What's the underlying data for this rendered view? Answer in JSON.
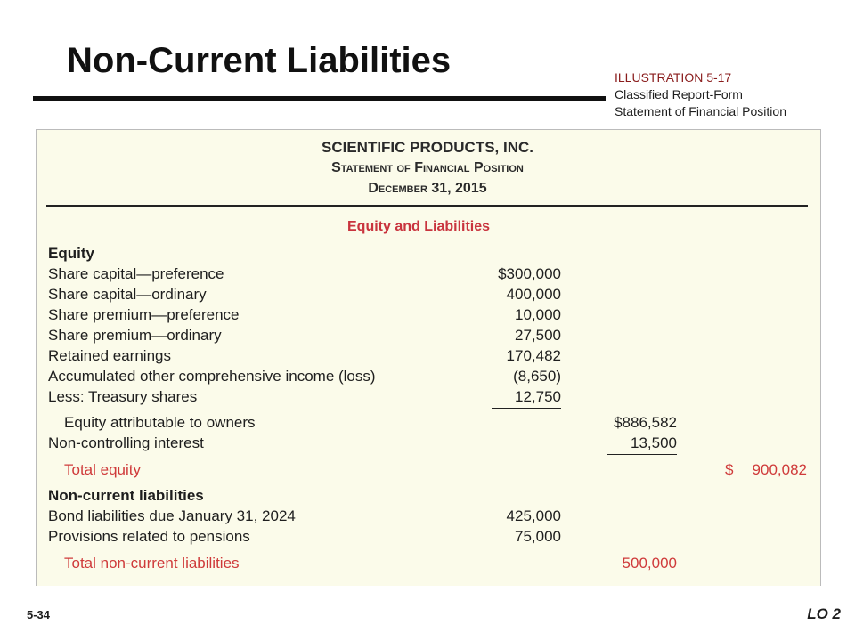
{
  "slide": {
    "title": "Non-Current Liabilities",
    "illustration": {
      "number": "ILLUSTRATION 5-17",
      "caption_lines": [
        "Classified Report-Form",
        "Statement of Financial Position"
      ]
    },
    "page_number": "5-34",
    "learning_objective": "LO 2"
  },
  "statement": {
    "company": "SCIENTIFIC PRODUCTS, INC.",
    "name": "Statement of Financial Position",
    "date": "December 31, 2015",
    "section": "Equity and Liabilities",
    "rows": [
      {
        "label": "Equity"
      },
      {
        "label": "Share capital—preference",
        "col1": "$300,000"
      },
      {
        "label": "Share capital—ordinary",
        "col1": "400,000"
      },
      {
        "label": "Share premium—preference",
        "col1": "10,000"
      },
      {
        "label": "Share premium—ordinary",
        "col1": "27,500"
      },
      {
        "label": "Retained earnings",
        "col1": "170,482"
      },
      {
        "label": "Accumulated other comprehensive income (loss)",
        "col1": "(8,650)"
      },
      {
        "label": "Less: Treasury shares",
        "col1": "12,750"
      },
      {
        "label": "Equity attributable to owners",
        "col2": "$886,582"
      },
      {
        "label": "Non-controlling interest",
        "col2": "13,500"
      },
      {
        "label": "Total equity",
        "col3": {
          "currency": "$",
          "amount": "900,082"
        }
      },
      {
        "label": "Non-current liabilities"
      },
      {
        "label": "Bond liabilities due January 31, 2024",
        "col1": "425,000"
      },
      {
        "label": "Provisions related to pensions",
        "col1": "75,000"
      },
      {
        "label": "Total non-current liabilities",
        "col2": "500,000"
      }
    ]
  }
}
